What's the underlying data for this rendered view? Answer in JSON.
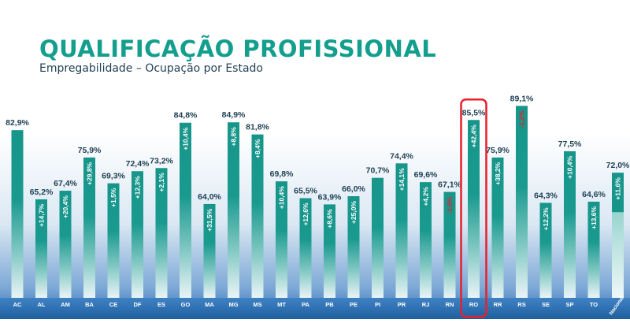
{
  "title": "QUALIFICAÇÃO PROFISSIONAL",
  "subtitle": "Empregabilidade – Ocupação por Estado",
  "colors": {
    "bar": "#17958a",
    "bar_light": "#a9dcd8",
    "background_top": "#ffffff",
    "background_bottom": "#2a72b8",
    "title": "#139e8d",
    "value_label": "#1e3f52",
    "growth_label": "#ffffff",
    "negative_growth_label": "#e8202a",
    "highlight": "#e8202a"
  },
  "chart_data": {
    "type": "bar",
    "categories": [
      "AC",
      "AL",
      "AM",
      "BA",
      "CE",
      "DF",
      "ES",
      "GO",
      "MA",
      "MG",
      "MS",
      "MT",
      "PA",
      "PB",
      "PE",
      "PI",
      "PR",
      "RJ",
      "RN",
      "RO",
      "RR",
      "RS",
      "SE",
      "SP",
      "TO",
      "Nacional"
    ],
    "series": [
      {
        "values": [
          82.9,
          65.2,
          67.4,
          75.9,
          69.3,
          72.4,
          73.2,
          84.8,
          64.0,
          84.9,
          81.8,
          69.8,
          65.5,
          63.9,
          66.0,
          70.7,
          74.4,
          69.6,
          67.1,
          85.5,
          75.9,
          89.1,
          64.3,
          77.5,
          64.6,
          72.0
        ]
      }
    ],
    "value_labels": [
      "82,9%",
      "65,2%",
      "67,4%",
      "75,9%",
      "69,3%",
      "72,4%",
      "73,2%",
      "84,8%",
      "64,0%",
      "84,9%",
      "81,8%",
      "69,8%",
      "65,5%",
      "63,9%",
      "66,0%",
      "70,7%",
      "74,4%",
      "69,6%",
      "67,1%",
      "85,5%",
      "75,9%",
      "89,1%",
      "64,3%",
      "77,5%",
      "64,6%",
      "72,0%"
    ],
    "growth_labels": [
      "",
      "+14,7%",
      "+20,4%",
      "+29,8%",
      "+1,5%",
      "+12,3%",
      "+2,1%",
      "+10,4%",
      "+31,5%",
      "+8,8%",
      "+8,4%",
      "+10,4%",
      "+12,6%",
      "+8,6%",
      "+25,0%",
      "",
      "+14,1%",
      "+4,2%",
      "-1,6%",
      "+42,4%",
      "+38,2%",
      "-1,2%",
      "+12,2%",
      "+10,4%",
      "+13,6%",
      "+11,6%"
    ],
    "ylim": [
      40,
      92
    ],
    "highlighted_category": "RO",
    "grid": false
  }
}
